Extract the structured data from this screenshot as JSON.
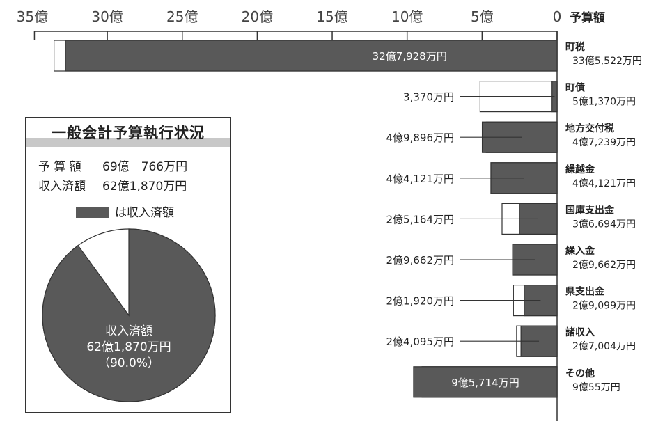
{
  "chart_data": {
    "type": "bar",
    "orientation": "horizontal",
    "unit_label": "予算額",
    "x_ticks": [
      "35億",
      "30億",
      "25億",
      "20億",
      "15億",
      "10億",
      "5億",
      "0"
    ],
    "x_max_oku": 35,
    "colors": {
      "received": "#595959",
      "budget": "#ffffff",
      "stroke": "#333333"
    },
    "categories": [
      {
        "name": "町税",
        "budget_label": "33億5,522万円",
        "budget": 33.5522,
        "received": 32.7928,
        "received_label": "32億7,928万円",
        "label_inside": true
      },
      {
        "name": "町債",
        "budget_label": "5億1,370万円",
        "budget": 5.137,
        "received": 0.337,
        "received_label": "3,370万円",
        "label_inside": false
      },
      {
        "name": "地方交付税",
        "budget_label": "4億7,239万円",
        "budget": 4.7239,
        "received": 4.9896,
        "received_label": "4億9,896万円",
        "label_inside": false
      },
      {
        "name": "繰越金",
        "budget_label": "4億4,121万円",
        "budget": 4.4121,
        "received": 4.4121,
        "received_label": "4億4,121万円",
        "label_inside": false
      },
      {
        "name": "国庫支出金",
        "budget_label": "3億6,694万円",
        "budget": 3.6694,
        "received": 2.5164,
        "received_label": "2億5,164万円",
        "label_inside": false
      },
      {
        "name": "繰入金",
        "budget_label": "2億9,662万円",
        "budget": 2.9662,
        "received": 2.9662,
        "received_label": "2億9,662万円",
        "label_inside": false
      },
      {
        "name": "県支出金",
        "budget_label": "2億9,099万円",
        "budget": 2.9099,
        "received": 2.192,
        "received_label": "2億1,920万円",
        "label_inside": false
      },
      {
        "name": "諸収入",
        "budget_label": "2億7,004万円",
        "budget": 2.7004,
        "received": 2.4095,
        "received_label": "2億4,095万円",
        "label_inside": false
      },
      {
        "name": "その他",
        "budget_label": "9億55万円",
        "budget": 9.0055,
        "received": 9.5714,
        "received_label": "9億5,714万円",
        "label_inside": true
      }
    ]
  },
  "pie_panel": {
    "title": "一般会計予算執行状況",
    "budget_label": "予 算 額",
    "budget_value": "69億　766万円",
    "received_label": "収入済額",
    "received_value": "62億1,870万円",
    "legend_text": "は収入済額",
    "pie": {
      "received_fraction": 0.9,
      "center_label_1": "収入済額",
      "center_label_2": "62億1,870万円",
      "center_label_3": "（90.0%）"
    }
  }
}
